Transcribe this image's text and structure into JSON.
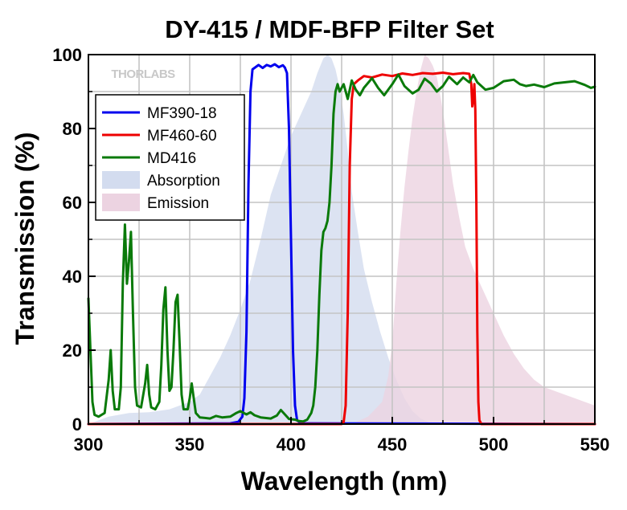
{
  "chart_data": {
    "type": "line",
    "title": "DY-415 / MDF-BFP Filter Set",
    "xlabel": "Wavelength (nm)",
    "ylabel": "Transmission (%)",
    "xlim": [
      300,
      550
    ],
    "ylim": [
      0,
      100
    ],
    "x_ticks": [
      300,
      350,
      400,
      450,
      500,
      550
    ],
    "y_ticks": [
      0,
      20,
      40,
      60,
      80,
      100
    ],
    "grid": true,
    "legend_position": "top-left",
    "watermark": "THORLABS",
    "series": [
      {
        "name": "MF390-18",
        "kind": "line",
        "color": "#0000ee",
        "points": [
          [
            300,
            0
          ],
          [
            370,
            0.2
          ],
          [
            374,
            0.6
          ],
          [
            376,
            2
          ],
          [
            377,
            7
          ],
          [
            378,
            25
          ],
          [
            379,
            65
          ],
          [
            380,
            90
          ],
          [
            381,
            96
          ],
          [
            384,
            97.2
          ],
          [
            386,
            96.4
          ],
          [
            388,
            97.2
          ],
          [
            390,
            96.8
          ],
          [
            392,
            97.4
          ],
          [
            394,
            96.6
          ],
          [
            396,
            97.1
          ],
          [
            397,
            96.5
          ],
          [
            398,
            95
          ],
          [
            399,
            80
          ],
          [
            400,
            50
          ],
          [
            401,
            20
          ],
          [
            402,
            5
          ],
          [
            403,
            1
          ],
          [
            405,
            0.2
          ],
          [
            550,
            0
          ]
        ]
      },
      {
        "name": "MF460-60",
        "kind": "line",
        "color": "#ee0000",
        "points": [
          [
            300,
            0
          ],
          [
            425,
            0
          ],
          [
            426,
            0.5
          ],
          [
            427,
            5
          ],
          [
            428,
            30
          ],
          [
            429,
            70
          ],
          [
            430,
            88
          ],
          [
            431,
            92
          ],
          [
            433,
            93
          ],
          [
            436,
            94.2
          ],
          [
            440,
            93.8
          ],
          [
            445,
            94.6
          ],
          [
            450,
            94.2
          ],
          [
            455,
            94.9
          ],
          [
            460,
            94.5
          ],
          [
            465,
            95
          ],
          [
            470,
            94.8
          ],
          [
            475,
            95.1
          ],
          [
            480,
            94.7
          ],
          [
            485,
            95
          ],
          [
            488,
            94.8
          ],
          [
            489,
            92
          ],
          [
            489.5,
            86
          ],
          [
            490,
            88
          ],
          [
            490.5,
            92
          ],
          [
            491,
            85
          ],
          [
            491.5,
            60
          ],
          [
            492,
            25
          ],
          [
            492.5,
            6
          ],
          [
            493,
            1
          ],
          [
            494,
            0
          ],
          [
            550,
            0
          ]
        ]
      },
      {
        "name": "MD416",
        "kind": "line",
        "color": "#0a7a0a",
        "points": [
          [
            300,
            34
          ],
          [
            301,
            20
          ],
          [
            302,
            6
          ],
          [
            303,
            2.5
          ],
          [
            305,
            2
          ],
          [
            308,
            3
          ],
          [
            310,
            12
          ],
          [
            311,
            20
          ],
          [
            312,
            9
          ],
          [
            313,
            4
          ],
          [
            315,
            4
          ],
          [
            316,
            10
          ],
          [
            317,
            38
          ],
          [
            318,
            54
          ],
          [
            319,
            38
          ],
          [
            320,
            44
          ],
          [
            321,
            52
          ],
          [
            322,
            30
          ],
          [
            323,
            10
          ],
          [
            324,
            5
          ],
          [
            326,
            4.5
          ],
          [
            328,
            11
          ],
          [
            329,
            16
          ],
          [
            330,
            8
          ],
          [
            331,
            4.5
          ],
          [
            333,
            4
          ],
          [
            335,
            6
          ],
          [
            336,
            16
          ],
          [
            337,
            31
          ],
          [
            338,
            37
          ],
          [
            339,
            20
          ],
          [
            340,
            9
          ],
          [
            341,
            10
          ],
          [
            342,
            20
          ],
          [
            343,
            33
          ],
          [
            344,
            35
          ],
          [
            345,
            22
          ],
          [
            346,
            8
          ],
          [
            347,
            4
          ],
          [
            349,
            4
          ],
          [
            350,
            7
          ],
          [
            351,
            11
          ],
          [
            352,
            7
          ],
          [
            353,
            3
          ],
          [
            355,
            1.8
          ],
          [
            360,
            1.5
          ],
          [
            363,
            2.2
          ],
          [
            366,
            1.8
          ],
          [
            370,
            2
          ],
          [
            373,
            3
          ],
          [
            375,
            3.5
          ],
          [
            378,
            2.6
          ],
          [
            380,
            3.2
          ],
          [
            382,
            2.4
          ],
          [
            385,
            1.8
          ],
          [
            390,
            1.5
          ],
          [
            393,
            2.3
          ],
          [
            395,
            3.8
          ],
          [
            397,
            2.6
          ],
          [
            399,
            1.4
          ],
          [
            402,
            1.2
          ],
          [
            404,
            0.8
          ],
          [
            406,
            0.7
          ],
          [
            408,
            1.2
          ],
          [
            410,
            3
          ],
          [
            411,
            5
          ],
          [
            412,
            10
          ],
          [
            413,
            20
          ],
          [
            414,
            35
          ],
          [
            415,
            47
          ],
          [
            416,
            52
          ],
          [
            417,
            53
          ],
          [
            418,
            55
          ],
          [
            419,
            60
          ],
          [
            420,
            70
          ],
          [
            421,
            84
          ],
          [
            422,
            90
          ],
          [
            423,
            92
          ],
          [
            424,
            90
          ],
          [
            426,
            92
          ],
          [
            428,
            88
          ],
          [
            429,
            90.5
          ],
          [
            430,
            93
          ],
          [
            432,
            90.5
          ],
          [
            434,
            89
          ],
          [
            436,
            91
          ],
          [
            440,
            93.6
          ],
          [
            443,
            91
          ],
          [
            446,
            89
          ],
          [
            450,
            92
          ],
          [
            453,
            94.6
          ],
          [
            456,
            91.5
          ],
          [
            460,
            89.5
          ],
          [
            463,
            90.5
          ],
          [
            466,
            93.5
          ],
          [
            469,
            92.2
          ],
          [
            472,
            90
          ],
          [
            475,
            91.5
          ],
          [
            478,
            94
          ],
          [
            482,
            92
          ],
          [
            485,
            93.8
          ],
          [
            488,
            92.5
          ],
          [
            490,
            94.5
          ],
          [
            492,
            92.5
          ],
          [
            496,
            90.5
          ],
          [
            500,
            91
          ],
          [
            505,
            92.8
          ],
          [
            510,
            93.2
          ],
          [
            513,
            92
          ],
          [
            516,
            91.5
          ],
          [
            520,
            91.9
          ],
          [
            525,
            91.2
          ],
          [
            530,
            92.2
          ],
          [
            535,
            92.5
          ],
          [
            540,
            92.8
          ],
          [
            545,
            91.8
          ],
          [
            548,
            91
          ],
          [
            550,
            91.3
          ]
        ]
      },
      {
        "name": "Absorption",
        "kind": "area",
        "color": "#d3dcef",
        "points": [
          [
            300,
            0
          ],
          [
            305,
            1
          ],
          [
            310,
            2
          ],
          [
            315,
            2.5
          ],
          [
            320,
            3
          ],
          [
            330,
            3.2
          ],
          [
            340,
            4
          ],
          [
            350,
            6
          ],
          [
            355,
            8
          ],
          [
            360,
            13
          ],
          [
            365,
            18
          ],
          [
            370,
            24
          ],
          [
            375,
            31
          ],
          [
            380,
            39
          ],
          [
            385,
            50
          ],
          [
            390,
            62
          ],
          [
            395,
            70
          ],
          [
            400,
            78
          ],
          [
            405,
            84
          ],
          [
            410,
            90
          ],
          [
            413,
            95
          ],
          [
            416,
            99
          ],
          [
            418,
            100
          ],
          [
            420,
            99
          ],
          [
            422,
            96
          ],
          [
            424,
            91
          ],
          [
            426,
            84
          ],
          [
            428,
            74
          ],
          [
            430,
            63
          ],
          [
            433,
            52
          ],
          [
            436,
            42
          ],
          [
            440,
            33
          ],
          [
            444,
            25
          ],
          [
            448,
            18
          ],
          [
            452,
            12
          ],
          [
            456,
            7
          ],
          [
            460,
            3.5
          ],
          [
            464,
            1.5
          ],
          [
            468,
            0.5
          ],
          [
            472,
            0
          ],
          [
            550,
            0
          ]
        ]
      },
      {
        "name": "Emission",
        "kind": "area",
        "color": "#ecd3e1",
        "points": [
          [
            300,
            0
          ],
          [
            430,
            0
          ],
          [
            438,
            2
          ],
          [
            445,
            6
          ],
          [
            448,
            13
          ],
          [
            450,
            22
          ],
          [
            452,
            38
          ],
          [
            454,
            52
          ],
          [
            456,
            64
          ],
          [
            458,
            74
          ],
          [
            460,
            83
          ],
          [
            462,
            90
          ],
          [
            464,
            96
          ],
          [
            466,
            100
          ],
          [
            468,
            99
          ],
          [
            470,
            97
          ],
          [
            472,
            94
          ],
          [
            474,
            88
          ],
          [
            476,
            81
          ],
          [
            478,
            73
          ],
          [
            480,
            65
          ],
          [
            483,
            56
          ],
          [
            486,
            48
          ],
          [
            490,
            42
          ],
          [
            495,
            36
          ],
          [
            500,
            30
          ],
          [
            505,
            24
          ],
          [
            510,
            19
          ],
          [
            515,
            15
          ],
          [
            520,
            12
          ],
          [
            525,
            10
          ],
          [
            530,
            9
          ],
          [
            535,
            8
          ],
          [
            540,
            7
          ],
          [
            545,
            6
          ],
          [
            550,
            5
          ]
        ]
      }
    ]
  }
}
